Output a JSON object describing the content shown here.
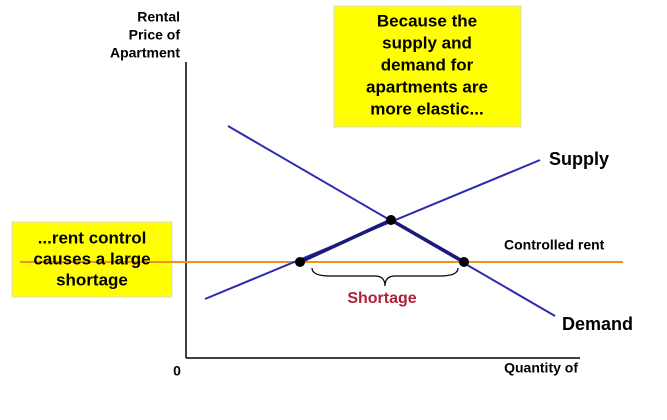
{
  "y_axis_label": [
    "Rental",
    "Price of",
    "Apartment"
  ],
  "x_axis_label": "Quantity of",
  "origin_label": "0",
  "top_box": [
    "Because the",
    "supply and",
    "demand for",
    "apartments are",
    "more elastic..."
  ],
  "left_box": [
    "...rent control",
    "causes a large",
    "shortage"
  ],
  "supply_label": "Supply",
  "demand_label": "Demand",
  "controlled_rent_label": "Controlled rent",
  "shortage_label": "Shortage"
}
